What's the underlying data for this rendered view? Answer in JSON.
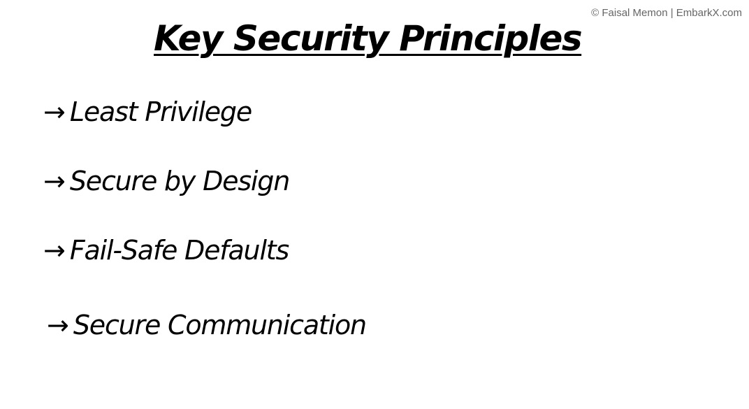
{
  "copyright": "© Faisal Memon | EmbarkX.com",
  "title": "Key Security Principles",
  "bullets": [
    {
      "arrow": "→",
      "label": "Least Privilege"
    },
    {
      "arrow": "→",
      "label": "Secure by Design"
    },
    {
      "arrow": "→",
      "label": "Fail-Safe Defaults"
    },
    {
      "arrow": "→",
      "label": "Secure Communication"
    }
  ]
}
